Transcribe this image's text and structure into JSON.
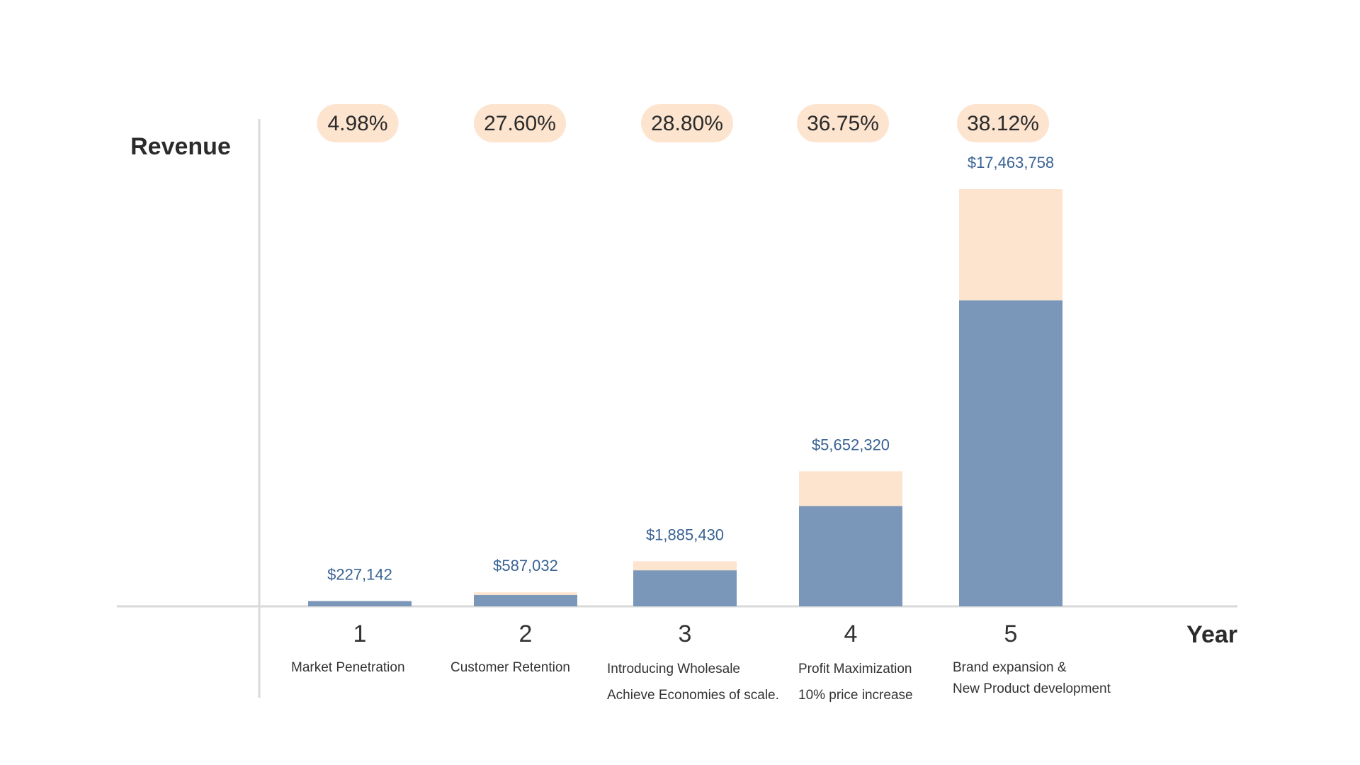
{
  "chart_data": {
    "type": "bar",
    "ylabel": "Revenue",
    "xlabel": "Year",
    "categories": [
      "1",
      "2",
      "3",
      "4",
      "5"
    ],
    "descriptions": [
      [
        "Market Penetration"
      ],
      [
        "Customer Retention"
      ],
      [
        "Introducing Wholesale",
        "Achieve Economies of scale."
      ],
      [
        "Profit Maximization",
        "10% price increase"
      ],
      [
        "Brand expansion &",
        "New Product development"
      ]
    ],
    "value_labels": [
      "$227,142",
      "$587,032",
      "$1,885,430",
      "$5,652,320",
      "$17,463,758"
    ],
    "values": [
      227142,
      587032,
      1885430,
      5652320,
      17463758
    ],
    "percent_labels": [
      "4.98%",
      "27.60%",
      "28.80%",
      "36.75%",
      "38.12%"
    ],
    "percent_values": [
      4.98,
      27.6,
      28.8,
      36.75,
      38.12
    ],
    "colors": {
      "base": "#7a97b9",
      "top": "#fde4cf",
      "value_text": "#3a6394",
      "pill": "#fde4cf",
      "axis": "#d9d9d9"
    }
  }
}
